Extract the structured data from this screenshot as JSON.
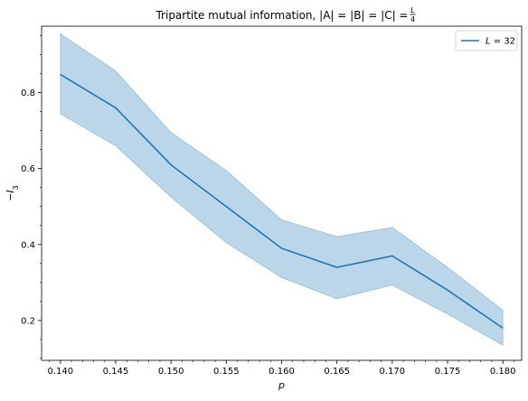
{
  "chart_data": {
    "type": "line",
    "title": "Tripartite mutual information, |A| = |B| = |C| = L/4",
    "title_parts": {
      "main": "Tripartite mutual information, ",
      "math": "|A| = |B| = |C| = ",
      "frac_num": "L",
      "frac_den": "4"
    },
    "xlabel": "p",
    "ylabel": "−I",
    "ylabel_sub": "3",
    "x": [
      0.14,
      0.145,
      0.15,
      0.155,
      0.16,
      0.165,
      0.17,
      0.175,
      0.18
    ],
    "x_tick_labels": [
      "0.140",
      "0.145",
      "0.150",
      "0.155",
      "0.160",
      "0.165",
      "0.170",
      "0.175",
      "0.180"
    ],
    "y_ticks": [
      0.2,
      0.4,
      0.6,
      0.8
    ],
    "y_tick_labels": [
      "0.2",
      "0.4",
      "0.6",
      "0.8"
    ],
    "xlim": [
      0.1383,
      0.1817
    ],
    "ylim": [
      0.095,
      0.975
    ],
    "minor_ticks": true,
    "grid": false,
    "legend_position": "top-right",
    "series": [
      {
        "name": "L = 32",
        "legend_label": {
          "var": "L",
          "rest": " = 32"
        },
        "color": "#1f77b4",
        "band_color": "#1f77b4",
        "band_opacity": 0.3,
        "values": [
          0.848,
          0.76,
          0.61,
          0.5,
          0.39,
          0.34,
          0.37,
          0.28,
          0.18
        ],
        "lower": [
          0.744,
          0.66,
          0.525,
          0.405,
          0.313,
          0.257,
          0.293,
          0.217,
          0.135
        ],
        "upper": [
          0.955,
          0.857,
          0.695,
          0.595,
          0.465,
          0.421,
          0.445,
          0.34,
          0.227
        ]
      }
    ]
  }
}
